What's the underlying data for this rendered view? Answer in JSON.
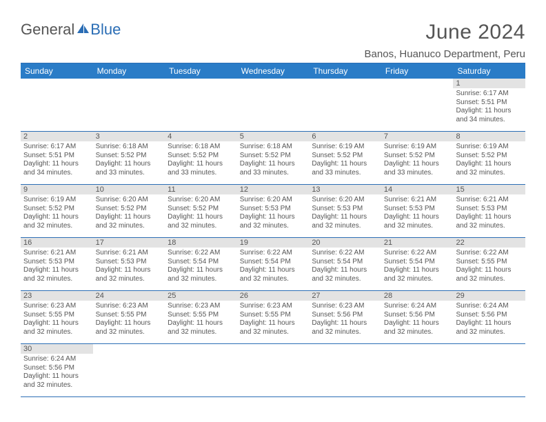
{
  "brand": {
    "general": "General",
    "blue": "Blue"
  },
  "title": "June 2024",
  "location": "Banos, Huanuco Department, Peru",
  "colors": {
    "header_band": "#2a7cc7",
    "header_text": "#ffffff",
    "rule": "#2a6db5",
    "daynum_band": "#e3e3e3",
    "text": "#555555",
    "background": "#ffffff"
  },
  "dow": [
    "Sunday",
    "Monday",
    "Tuesday",
    "Wednesday",
    "Thursday",
    "Friday",
    "Saturday"
  ],
  "labels": {
    "sunrise": "Sunrise:",
    "sunset": "Sunset:",
    "daylight": "Daylight:"
  },
  "weeks": [
    [
      null,
      null,
      null,
      null,
      null,
      null,
      {
        "n": "1",
        "sr": "6:17 AM",
        "ss": "5:51 PM",
        "dl": "11 hours and 34 minutes."
      }
    ],
    [
      {
        "n": "2",
        "sr": "6:17 AM",
        "ss": "5:51 PM",
        "dl": "11 hours and 34 minutes."
      },
      {
        "n": "3",
        "sr": "6:18 AM",
        "ss": "5:52 PM",
        "dl": "11 hours and 33 minutes."
      },
      {
        "n": "4",
        "sr": "6:18 AM",
        "ss": "5:52 PM",
        "dl": "11 hours and 33 minutes."
      },
      {
        "n": "5",
        "sr": "6:18 AM",
        "ss": "5:52 PM",
        "dl": "11 hours and 33 minutes."
      },
      {
        "n": "6",
        "sr": "6:19 AM",
        "ss": "5:52 PM",
        "dl": "11 hours and 33 minutes."
      },
      {
        "n": "7",
        "sr": "6:19 AM",
        "ss": "5:52 PM",
        "dl": "11 hours and 33 minutes."
      },
      {
        "n": "8",
        "sr": "6:19 AM",
        "ss": "5:52 PM",
        "dl": "11 hours and 32 minutes."
      }
    ],
    [
      {
        "n": "9",
        "sr": "6:19 AM",
        "ss": "5:52 PM",
        "dl": "11 hours and 32 minutes."
      },
      {
        "n": "10",
        "sr": "6:20 AM",
        "ss": "5:52 PM",
        "dl": "11 hours and 32 minutes."
      },
      {
        "n": "11",
        "sr": "6:20 AM",
        "ss": "5:52 PM",
        "dl": "11 hours and 32 minutes."
      },
      {
        "n": "12",
        "sr": "6:20 AM",
        "ss": "5:53 PM",
        "dl": "11 hours and 32 minutes."
      },
      {
        "n": "13",
        "sr": "6:20 AM",
        "ss": "5:53 PM",
        "dl": "11 hours and 32 minutes."
      },
      {
        "n": "14",
        "sr": "6:21 AM",
        "ss": "5:53 PM",
        "dl": "11 hours and 32 minutes."
      },
      {
        "n": "15",
        "sr": "6:21 AM",
        "ss": "5:53 PM",
        "dl": "11 hours and 32 minutes."
      }
    ],
    [
      {
        "n": "16",
        "sr": "6:21 AM",
        "ss": "5:53 PM",
        "dl": "11 hours and 32 minutes."
      },
      {
        "n": "17",
        "sr": "6:21 AM",
        "ss": "5:53 PM",
        "dl": "11 hours and 32 minutes."
      },
      {
        "n": "18",
        "sr": "6:22 AM",
        "ss": "5:54 PM",
        "dl": "11 hours and 32 minutes."
      },
      {
        "n": "19",
        "sr": "6:22 AM",
        "ss": "5:54 PM",
        "dl": "11 hours and 32 minutes."
      },
      {
        "n": "20",
        "sr": "6:22 AM",
        "ss": "5:54 PM",
        "dl": "11 hours and 32 minutes."
      },
      {
        "n": "21",
        "sr": "6:22 AM",
        "ss": "5:54 PM",
        "dl": "11 hours and 32 minutes."
      },
      {
        "n": "22",
        "sr": "6:22 AM",
        "ss": "5:55 PM",
        "dl": "11 hours and 32 minutes."
      }
    ],
    [
      {
        "n": "23",
        "sr": "6:23 AM",
        "ss": "5:55 PM",
        "dl": "11 hours and 32 minutes."
      },
      {
        "n": "24",
        "sr": "6:23 AM",
        "ss": "5:55 PM",
        "dl": "11 hours and 32 minutes."
      },
      {
        "n": "25",
        "sr": "6:23 AM",
        "ss": "5:55 PM",
        "dl": "11 hours and 32 minutes."
      },
      {
        "n": "26",
        "sr": "6:23 AM",
        "ss": "5:55 PM",
        "dl": "11 hours and 32 minutes."
      },
      {
        "n": "27",
        "sr": "6:23 AM",
        "ss": "5:56 PM",
        "dl": "11 hours and 32 minutes."
      },
      {
        "n": "28",
        "sr": "6:24 AM",
        "ss": "5:56 PM",
        "dl": "11 hours and 32 minutes."
      },
      {
        "n": "29",
        "sr": "6:24 AM",
        "ss": "5:56 PM",
        "dl": "11 hours and 32 minutes."
      }
    ],
    [
      {
        "n": "30",
        "sr": "6:24 AM",
        "ss": "5:56 PM",
        "dl": "11 hours and 32 minutes."
      },
      null,
      null,
      null,
      null,
      null,
      null
    ]
  ]
}
